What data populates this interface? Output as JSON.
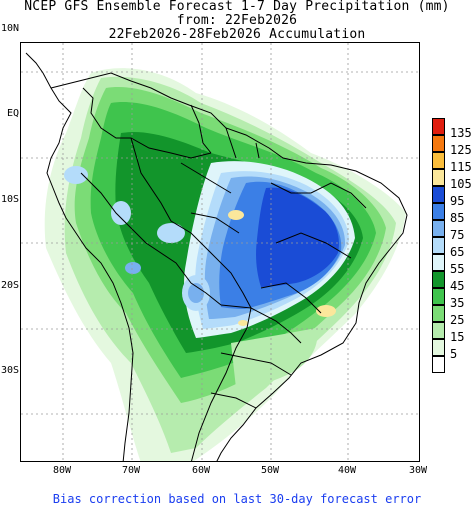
{
  "header": {
    "line1": "NCEP GFS Ensemble Forecast 1-7 Day Precipitation (mm)",
    "line2": "from: 22Feb2026",
    "line3": "22Feb2026-28Feb2026 Accumulation"
  },
  "map": {
    "lat_labels": [
      "10N",
      "EQ",
      "10S",
      "20S",
      "30S"
    ],
    "lon_labels": [
      "80W",
      "70W",
      "60W",
      "50W",
      "40W",
      "30W"
    ]
  },
  "legend": {
    "items": [
      {
        "label": "135",
        "color": "#e01e0f"
      },
      {
        "label": "125",
        "color": "#f5780f"
      },
      {
        "label": "115",
        "color": "#fbbe3c"
      },
      {
        "label": "105",
        "color": "#fbe79b"
      },
      {
        "label": "95",
        "color": "#1a4cd6"
      },
      {
        "label": "85",
        "color": "#3b7fe6"
      },
      {
        "label": "75",
        "color": "#78b0ee"
      },
      {
        "label": "65",
        "color": "#b4dcfa"
      },
      {
        "label": "55",
        "color": "#dff5fa"
      },
      {
        "label": "45",
        "color": "#12952b"
      },
      {
        "label": "35",
        "color": "#3fc44d"
      },
      {
        "label": "25",
        "color": "#7bdc76"
      },
      {
        "label": "15",
        "color": "#b6ecae"
      },
      {
        "label": "5",
        "color": "#e4f8df"
      },
      {
        "label": "",
        "color": "#ffffff"
      }
    ]
  },
  "footer": {
    "text": "Bias correction based on last 30-day forecast error"
  }
}
